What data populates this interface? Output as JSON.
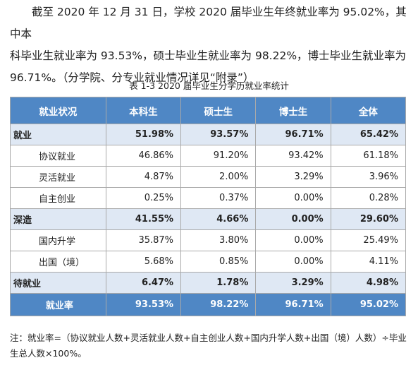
{
  "intro": {
    "lines": [
      "截至 2020 年 12 月 31 日，学校 2020 届毕业生年终就业率为 95.02%，其中本",
      "科毕业生就业率为 93.53%，硕士毕业生就业率为 98.22%，博士毕业生就业率为",
      "96.71%。（分学院、分专业就业情况详见“附录”）"
    ]
  },
  "caption": "表 1-3   2020 届毕业生分学历就业率统计",
  "table": {
    "headers": [
      "就业状况",
      "本科生",
      "硕士生",
      "博士生",
      "全体"
    ],
    "rows": [
      {
        "type": "bold",
        "label": "就业",
        "values": [
          "51.98%",
          "93.57%",
          "96.71%",
          "65.42%"
        ]
      },
      {
        "type": "sub",
        "label": "协议就业",
        "values": [
          "46.86%",
          "91.20%",
          "93.42%",
          "61.18%"
        ]
      },
      {
        "type": "sub",
        "label": "灵活就业",
        "values": [
          "4.87%",
          "2.00%",
          "3.29%",
          "3.96%"
        ]
      },
      {
        "type": "sub",
        "label": "自主创业",
        "values": [
          "0.25%",
          "0.37%",
          "0.00%",
          "0.28%"
        ]
      },
      {
        "type": "bold",
        "label": "深造",
        "values": [
          "41.55%",
          "4.66%",
          "0.00%",
          "29.60%"
        ]
      },
      {
        "type": "sub",
        "label": "国内升学",
        "values": [
          "35.87%",
          "3.80%",
          "0.00%",
          "25.49%"
        ]
      },
      {
        "type": "sub",
        "label": "出国（境）",
        "values": [
          "5.68%",
          "0.85%",
          "0.00%",
          "4.11%"
        ]
      },
      {
        "type": "bold",
        "label": "待就业",
        "values": [
          "6.47%",
          "1.78%",
          "3.29%",
          "4.98%"
        ]
      },
      {
        "type": "total",
        "label": "就业率",
        "values": [
          "93.53%",
          "98.22%",
          "96.71%",
          "95.02%"
        ]
      }
    ]
  },
  "note": "注：就业率=（协议就业人数+灵活就业人数+自主创业人数+国内升学人数+出国（境）人数）÷毕业生总人数×100%。"
}
